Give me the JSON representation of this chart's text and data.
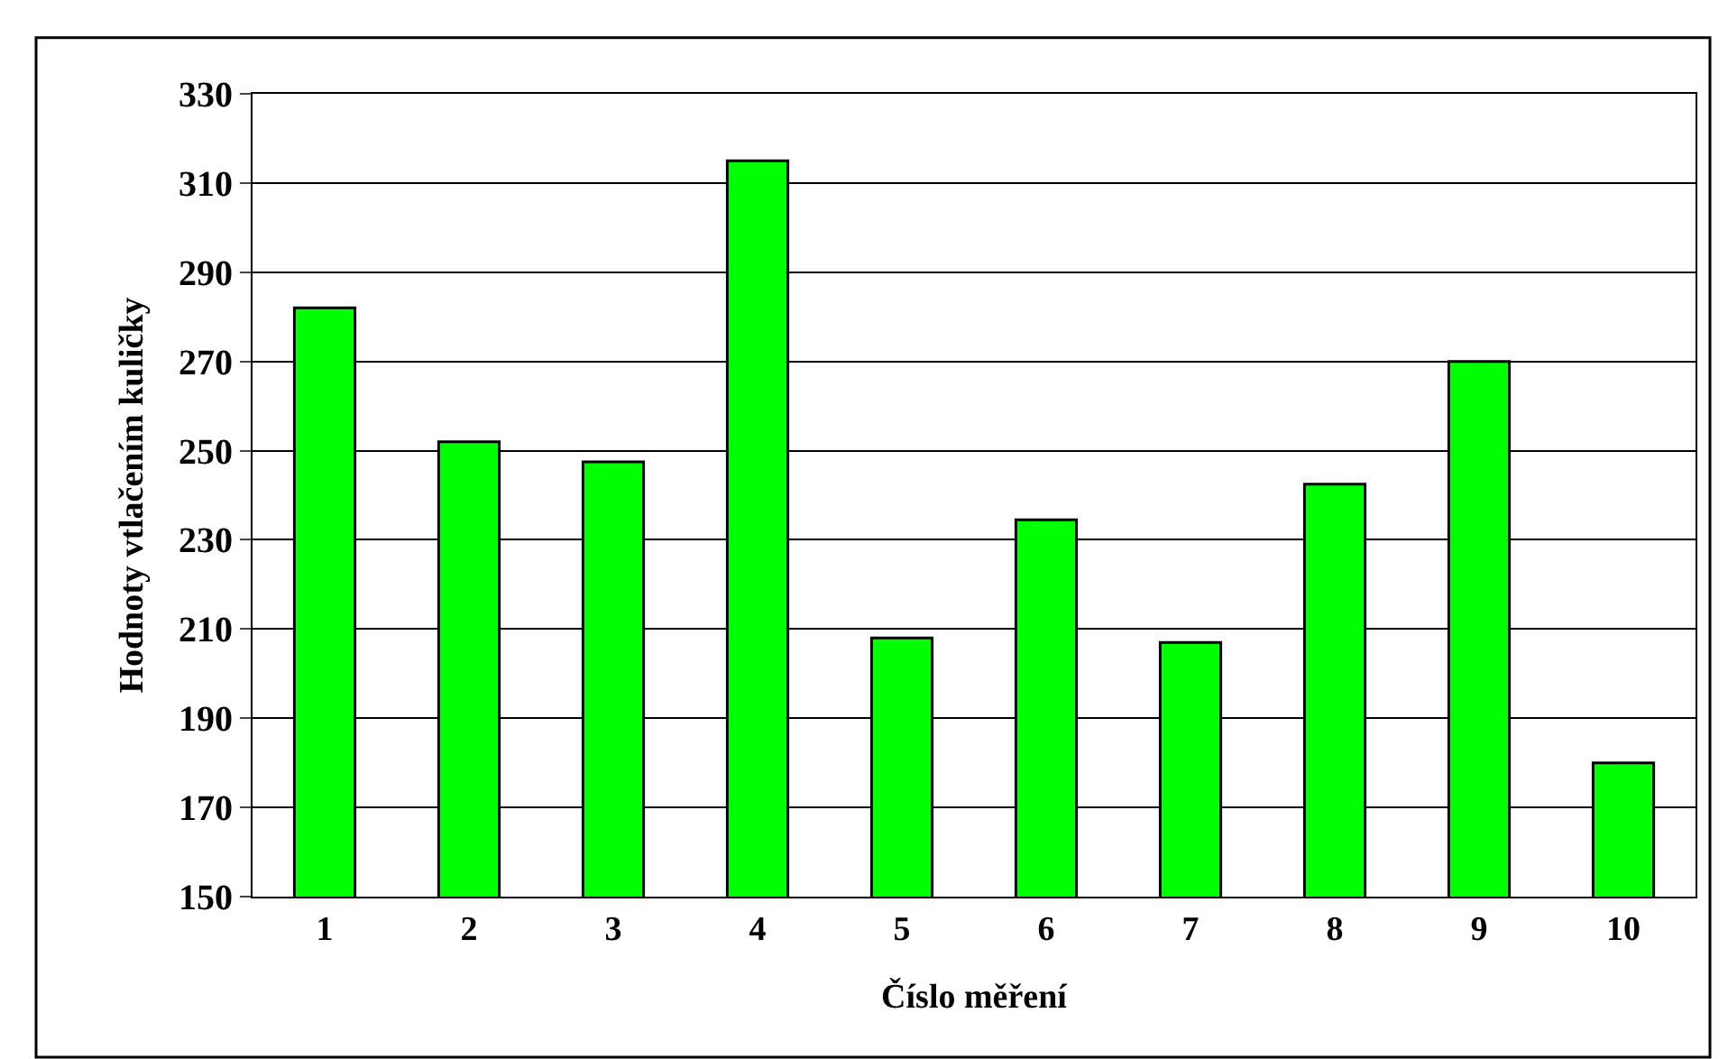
{
  "chart_data": {
    "type": "bar",
    "xlabel": "Číslo měření",
    "ylabel": "Hodnoty vtlačením kuličky",
    "categories": [
      "1",
      "2",
      "3",
      "4",
      "5",
      "6",
      "7",
      "8",
      "9",
      "10"
    ],
    "values": [
      282,
      252,
      247.5,
      315,
      208,
      234.5,
      207,
      242.5,
      270,
      180
    ],
    "color": "#00ff00",
    "ylim": [
      150,
      330
    ],
    "yticks": [
      150,
      170,
      190,
      210,
      230,
      250,
      270,
      290,
      310,
      330
    ],
    "grid": "y"
  }
}
